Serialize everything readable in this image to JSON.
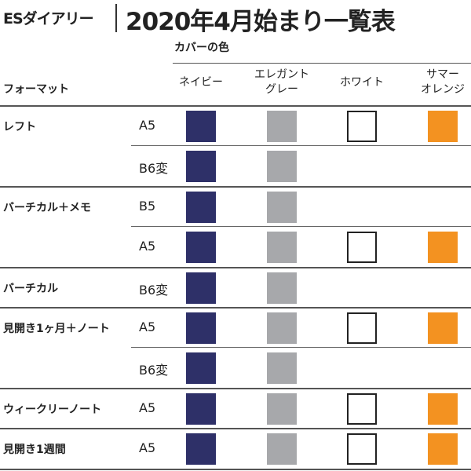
{
  "header": {
    "brand": "ESダイアリー",
    "title": "2020年4月始まり一覧表"
  },
  "table": {
    "cover_label": "カバーの色",
    "format_label": "フォーマット",
    "colors": [
      {
        "label": "ネイビー",
        "hex": "#2e3068"
      },
      {
        "label": "エレガント\nグレー",
        "hex": "#a7a8ab"
      },
      {
        "label": "ホワイト",
        "hex": "#ffffff"
      },
      {
        "label": "サマー\nオレンジ",
        "hex": "#f39221"
      }
    ],
    "groups": [
      {
        "format": "レフト",
        "rows": [
          {
            "size": "A5",
            "avail": [
              true,
              true,
              true,
              true
            ]
          },
          {
            "size": "B6変",
            "avail": [
              true,
              true,
              false,
              false
            ]
          }
        ]
      },
      {
        "format": "バーチカル＋メモ",
        "rows": [
          {
            "size": "B5",
            "avail": [
              true,
              true,
              false,
              false
            ]
          },
          {
            "size": "A5",
            "avail": [
              true,
              true,
              true,
              true
            ]
          }
        ]
      },
      {
        "format": "バーチカル",
        "rows": [
          {
            "size": "B6変",
            "avail": [
              true,
              true,
              false,
              false
            ]
          }
        ]
      },
      {
        "format": "見開き1ヶ月＋ノート",
        "rows": [
          {
            "size": "A5",
            "avail": [
              true,
              true,
              true,
              true
            ]
          },
          {
            "size": "B6変",
            "avail": [
              true,
              true,
              false,
              false
            ]
          }
        ]
      },
      {
        "format": "ウィークリーノート",
        "rows": [
          {
            "size": "A5",
            "avail": [
              true,
              true,
              true,
              true
            ]
          }
        ]
      },
      {
        "format": "見開き1週間",
        "rows": [
          {
            "size": "A5",
            "avail": [
              true,
              true,
              true,
              true
            ]
          }
        ]
      }
    ]
  }
}
